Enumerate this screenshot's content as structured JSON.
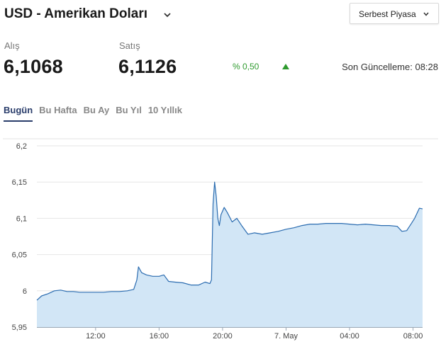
{
  "header": {
    "title": "USD - Amerikan Doları",
    "market_select": "Serbest Piyasa",
    "icons": {
      "title_caret": "chevron-down-icon",
      "select_caret": "chevron-down-icon",
      "change": "triangle-up-icon"
    }
  },
  "quote": {
    "buy_label": "Alış",
    "buy_value": "6,1068",
    "sell_label": "Satış",
    "sell_value": "6,1126",
    "change": "% 0,50",
    "change_color": "#2e9a2e",
    "updated_label": "Son Güncelleme: 08:28"
  },
  "tabs": [
    {
      "label": "Bugün",
      "active": true
    },
    {
      "label": "Bu Hafta",
      "active": false
    },
    {
      "label": "Bu Ay",
      "active": false
    },
    {
      "label": "Bu Yıl",
      "active": false
    },
    {
      "label": "10 Yıllık",
      "active": false
    }
  ],
  "chart_data": {
    "type": "area",
    "ylim": [
      5.95,
      6.2
    ],
    "y_ticks": [
      {
        "value": 5.95,
        "label": "5,95"
      },
      {
        "value": 6,
        "label": "6"
      },
      {
        "value": 6.05,
        "label": "6,05"
      },
      {
        "value": 6.1,
        "label": "6,1"
      },
      {
        "value": 6.15,
        "label": "6,15"
      },
      {
        "value": 6.2,
        "label": "6,2"
      }
    ],
    "xlim": [
      8.3,
      32.6
    ],
    "x_ticks": [
      {
        "value": 12,
        "label": "12:00"
      },
      {
        "value": 16,
        "label": "16:00"
      },
      {
        "value": 20,
        "label": "20:00"
      },
      {
        "value": 24,
        "label": "7. May"
      },
      {
        "value": 28,
        "label": "04:00"
      },
      {
        "value": 32,
        "label": "08:00"
      }
    ],
    "line_color": "#2b6cb0",
    "fill_color": "#d2e6f6",
    "series": [
      {
        "x": [
          8.3,
          8.6,
          9.0,
          9.4,
          9.8,
          10.2,
          10.6,
          11.0,
          11.5,
          12.0,
          12.5,
          13.0,
          13.5,
          14.0,
          14.4,
          14.6,
          14.7,
          14.9,
          15.2,
          15.6,
          16.0,
          16.3,
          16.6,
          17.0,
          17.5,
          18.0,
          18.5,
          18.9,
          19.2,
          19.3,
          19.4,
          19.5,
          19.6,
          19.7,
          19.8,
          19.9,
          20.1,
          20.3,
          20.6,
          20.9,
          21.2,
          21.6,
          22.0,
          22.5,
          23.0,
          23.5,
          24.0,
          24.5,
          25.0,
          25.5,
          26.0,
          26.5,
          27.0,
          27.5,
          28.0,
          28.5,
          29.0,
          29.5,
          30.0,
          30.5,
          31.0,
          31.3,
          31.6,
          31.9,
          32.1,
          32.4,
          32.6
        ],
        "y": [
          5.987,
          5.993,
          5.996,
          6.0,
          6.001,
          5.999,
          5.999,
          5.998,
          5.998,
          5.998,
          5.998,
          5.999,
          5.999,
          6.0,
          6.002,
          6.015,
          6.033,
          6.025,
          6.022,
          6.02,
          6.02,
          6.022,
          6.013,
          6.012,
          6.011,
          6.008,
          6.008,
          6.012,
          6.01,
          6.015,
          6.12,
          6.15,
          6.13,
          6.1,
          6.09,
          6.105,
          6.115,
          6.108,
          6.095,
          6.1,
          6.09,
          6.078,
          6.08,
          6.078,
          6.08,
          6.082,
          6.085,
          6.087,
          6.09,
          6.092,
          6.092,
          6.093,
          6.093,
          6.093,
          6.092,
          6.091,
          6.092,
          6.091,
          6.09,
          6.09,
          6.089,
          6.082,
          6.083,
          6.093,
          6.1,
          6.114,
          6.113
        ]
      }
    ]
  }
}
